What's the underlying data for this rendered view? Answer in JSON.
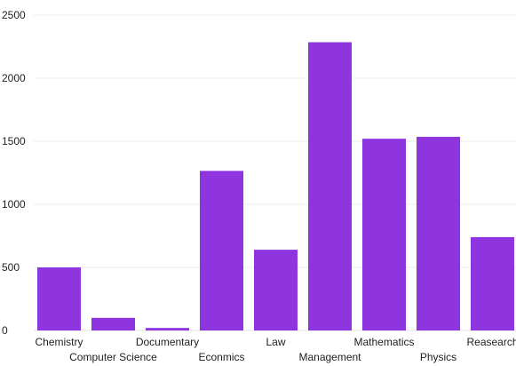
{
  "chart_data": {
    "type": "bar",
    "categories": [
      "Chemistry",
      "Computer Science",
      "Documentary",
      "Econmics",
      "Law",
      "Management",
      "Mathematics",
      "Physics",
      "Reasearch"
    ],
    "values": [
      500,
      100,
      20,
      1265,
      640,
      2285,
      1520,
      1535,
      740
    ],
    "ylim": [
      0,
      2500
    ],
    "yticks": [
      0,
      500,
      1000,
      1500,
      2000,
      2500
    ],
    "grid": true,
    "legend": "none",
    "bar_color": "#8e35e0"
  }
}
